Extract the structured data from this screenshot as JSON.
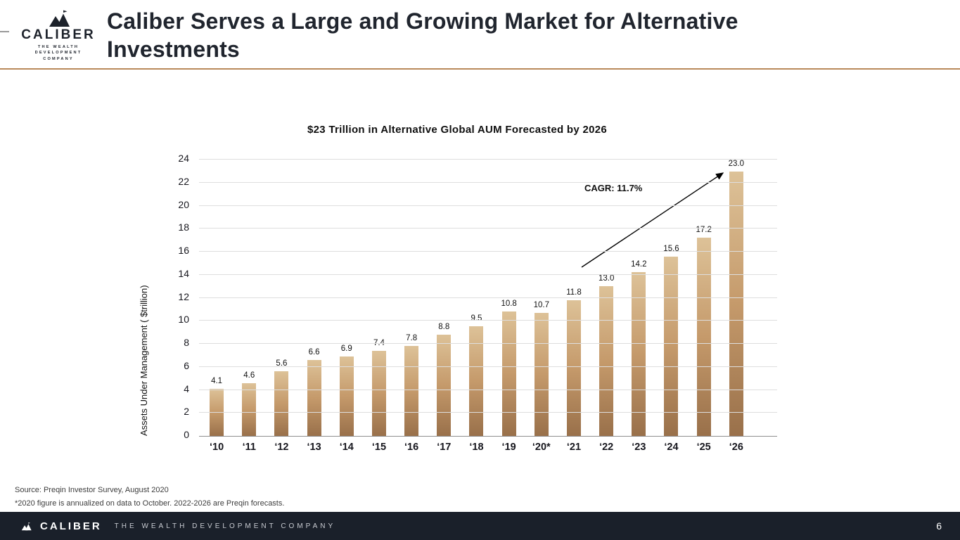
{
  "header": {
    "logo": {
      "brand": "CALIBER",
      "tagline": "THE WEALTH DEVELOPMENT COMPANY"
    },
    "title": "Caliber Serves a Large and Growing Market for Alternative Investments"
  },
  "chart_data": {
    "type": "bar",
    "title": "$23 Trillion in Alternative Global AUM Forecasted by 2026",
    "ylabel": "Assets Under Management ( $trillion)",
    "categories": [
      "‘10",
      "‘11",
      "‘12",
      "‘13",
      "‘14",
      "‘15",
      "‘16",
      "‘17",
      "‘18",
      "‘19",
      "‘20*",
      "‘21",
      "‘22",
      "‘23",
      "‘24",
      "‘25",
      "‘26"
    ],
    "values": [
      4.1,
      4.6,
      5.6,
      6.6,
      6.9,
      7.4,
      7.8,
      8.8,
      9.5,
      10.8,
      10.7,
      11.8,
      13.0,
      14.2,
      15.6,
      17.2,
      23.0
    ],
    "ylim": [
      0,
      24
    ],
    "ytick_step": 2,
    "grid": true,
    "legend": false,
    "annotation": "CAGR: 11.7%",
    "bar_color_top": "#ddc298",
    "bar_color_mid": "#c59a6b",
    "bar_color_bottom": "#99704a",
    "accent_gold": "#b9895a",
    "footer_bg": "#1a202a"
  },
  "footnotes": {
    "source": "Source: Preqin Investor Survey, August 2020",
    "note": "*2020 figure is annualized on data to October. 2022-2026 are Preqin forecasts."
  },
  "footer": {
    "brand": "CALIBER",
    "tagline": "THE WEALTH DEVELOPMENT COMPANY",
    "page_number": "6"
  }
}
